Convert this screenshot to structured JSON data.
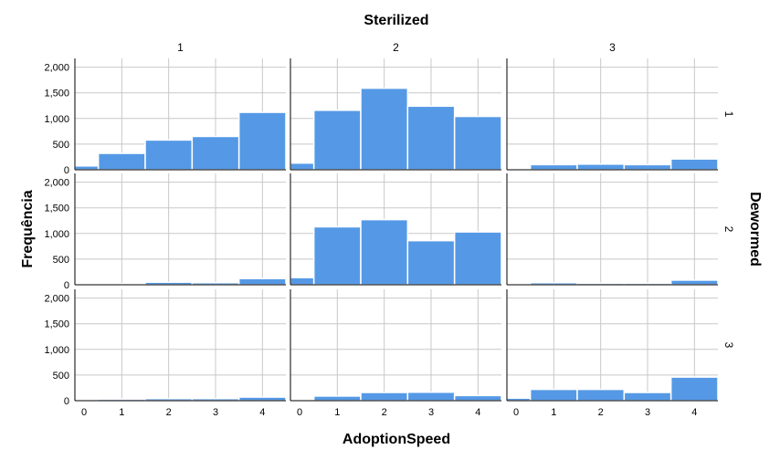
{
  "chart_data": {
    "type": "bar",
    "title": "Sterilized",
    "xlabel": "AdoptionSpeed",
    "ylabel": "Frequência",
    "row_facet_label": "Dewormed",
    "col_facet_label": "Sterilized",
    "columns": [
      "1",
      "2",
      "3"
    ],
    "rows": [
      "1",
      "2",
      "3"
    ],
    "categories": [
      "0",
      "1",
      "2",
      "3",
      "4"
    ],
    "y_ticks": [
      "0",
      "500",
      "1,000",
      "1,500",
      "2,000"
    ],
    "ylim": [
      0,
      2100
    ],
    "grid": true,
    "bar_color": "#5599e6",
    "panels": [
      {
        "row": "1",
        "col": "1",
        "values": [
          75,
          320,
          580,
          650,
          1120
        ]
      },
      {
        "row": "1",
        "col": "2",
        "values": [
          130,
          1160,
          1590,
          1240,
          1040
        ]
      },
      {
        "row": "1",
        "col": "3",
        "values": [
          20,
          100,
          110,
          100,
          210
        ]
      },
      {
        "row": "2",
        "col": "1",
        "values": [
          5,
          20,
          50,
          40,
          120
        ]
      },
      {
        "row": "2",
        "col": "2",
        "values": [
          140,
          1130,
          1270,
          860,
          1030
        ]
      },
      {
        "row": "2",
        "col": "3",
        "values": [
          5,
          40,
          30,
          30,
          90
        ]
      },
      {
        "row": "3",
        "col": "1",
        "values": [
          5,
          30,
          40,
          40,
          70
        ]
      },
      {
        "row": "3",
        "col": "2",
        "values": [
          15,
          90,
          160,
          165,
          100
        ]
      },
      {
        "row": "3",
        "col": "3",
        "values": [
          50,
          220,
          220,
          160,
          460
        ]
      }
    ]
  }
}
